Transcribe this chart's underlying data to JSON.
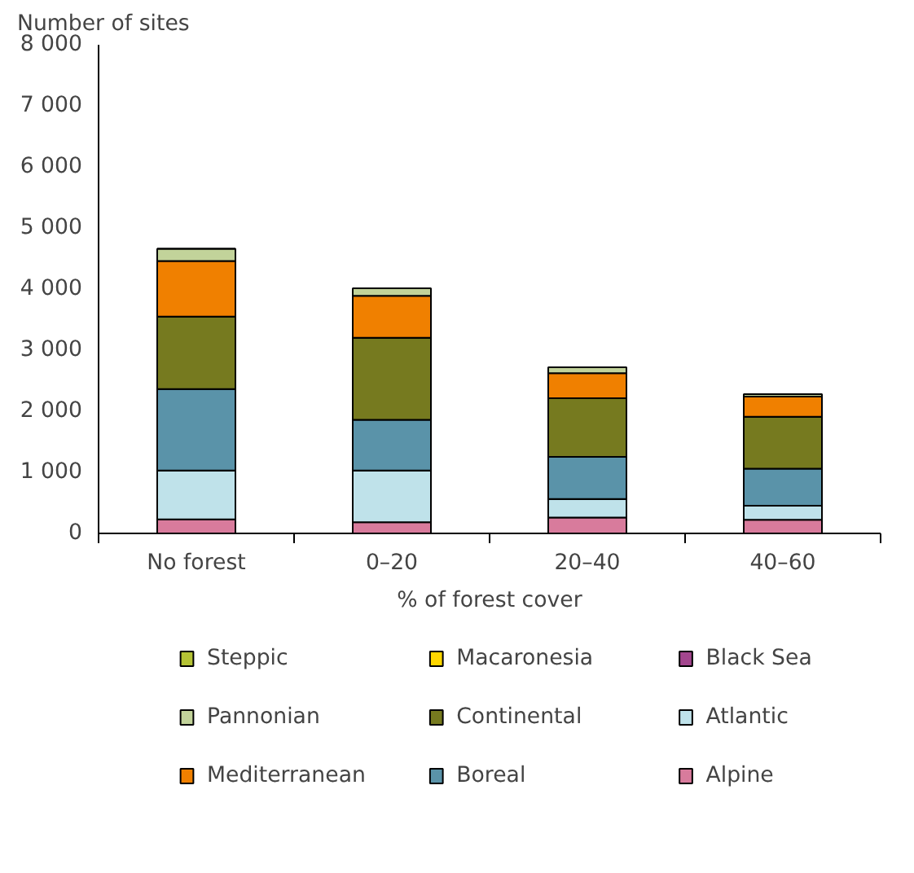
{
  "chart_data": {
    "type": "bar",
    "stacked": true,
    "ylabel": "Number of sites",
    "xlabel": "% of forest cover",
    "categories": [
      "No forest",
      "0–20",
      "20–40",
      "40–60"
    ],
    "series": [
      {
        "name": "Alpine",
        "color": "#d87b9c",
        "values": [
          230,
          185,
          260,
          225
        ]
      },
      {
        "name": "Atlantic",
        "color": "#bfe2ea",
        "values": [
          800,
          845,
          305,
          230
        ]
      },
      {
        "name": "Black Sea",
        "color": "#a3468e",
        "values": [
          null,
          null,
          null,
          null
        ]
      },
      {
        "name": "Boreal",
        "color": "#5a93a9",
        "values": [
          1335,
          830,
          690,
          605
        ]
      },
      {
        "name": "Continental",
        "color": "#767a1f",
        "values": [
          1185,
          1345,
          960,
          850
        ]
      },
      {
        "name": "Macaronesia",
        "color": "#ffd700",
        "values": [
          null,
          null,
          null,
          null
        ]
      },
      {
        "name": "Mediterranean",
        "color": "#f08000",
        "values": [
          910,
          685,
          410,
          330
        ]
      },
      {
        "name": "Pannonian",
        "color": "#c2d39a",
        "values": [
          200,
          125,
          95,
          40
        ]
      },
      {
        "name": "Steppic",
        "color": "#b5c335",
        "values": [
          null,
          null,
          null,
          null
        ]
      }
    ],
    "ylim": [
      0,
      8000
    ],
    "yticks": [
      0,
      {
        "value": 1000,
        "label": "1 000"
      },
      {
        "value": 2000,
        "label": "2 000"
      },
      {
        "value": 3000,
        "label": "3 000"
      },
      {
        "value": 4000,
        "label": "4 000"
      },
      {
        "value": 5000,
        "label": "5 000"
      },
      {
        "value": 6000,
        "label": "6 000"
      },
      {
        "value": 7000,
        "label": "7 000"
      },
      {
        "value": 8000,
        "label": "8 000"
      }
    ],
    "grid": false,
    "legend": "bottom"
  }
}
